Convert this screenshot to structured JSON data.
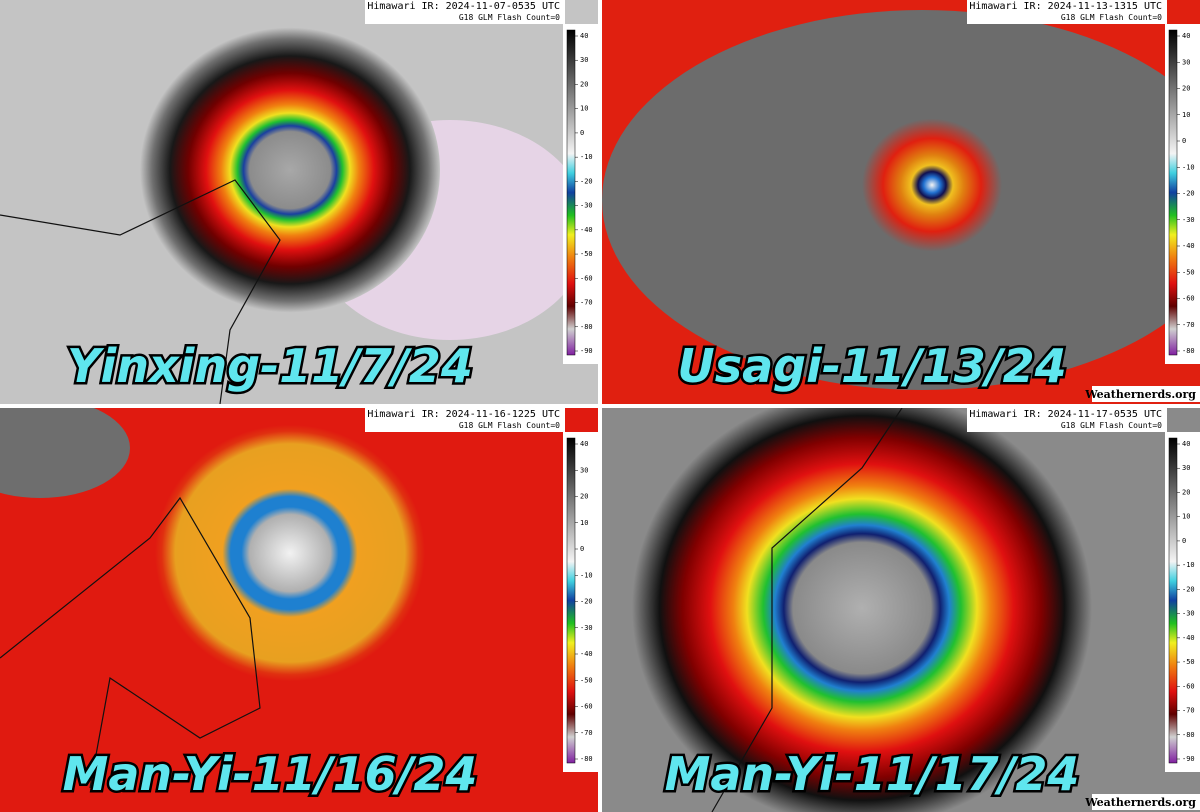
{
  "panels": [
    {
      "label": "Yinxing-11/7/24",
      "header": "Himawari IR: 2024-11-07-0535 UTC",
      "flash": "G18 GLM Flash Count=0",
      "colorbar_ticks": [
        40,
        30,
        20,
        10,
        0,
        -10,
        -20,
        -30,
        -40,
        -50,
        -60,
        -70,
        -80,
        -90
      ]
    },
    {
      "label": "Usagi-11/13/24",
      "header": "Himawari IR: 2024-11-13-1315 UTC",
      "flash": "G18 GLM Flash Count=0",
      "credit": "Weathernerds.org",
      "colorbar_ticks": [
        40,
        30,
        20,
        10,
        0,
        -10,
        -20,
        -30,
        -40,
        -50,
        -60,
        -70,
        -80
      ]
    },
    {
      "label": "Man-Yi-11/16/24",
      "header": "Himawari IR: 2024-11-16-1225 UTC",
      "flash": "G18 GLM Flash Count=0",
      "colorbar_ticks": [
        40,
        30,
        20,
        10,
        0,
        -10,
        -20,
        -30,
        -40,
        -50,
        -60,
        -70,
        -80
      ]
    },
    {
      "label": "Man-Yi-11/17/24",
      "header": "Himawari IR: 2024-11-17-0535 UTC",
      "flash": "G18 GLM Flash Count=0",
      "credit": "Weathernerds.org",
      "colorbar_ticks": [
        40,
        30,
        20,
        10,
        0,
        -10,
        -20,
        -30,
        -40,
        -50,
        -60,
        -70,
        -80,
        -90
      ]
    }
  ]
}
